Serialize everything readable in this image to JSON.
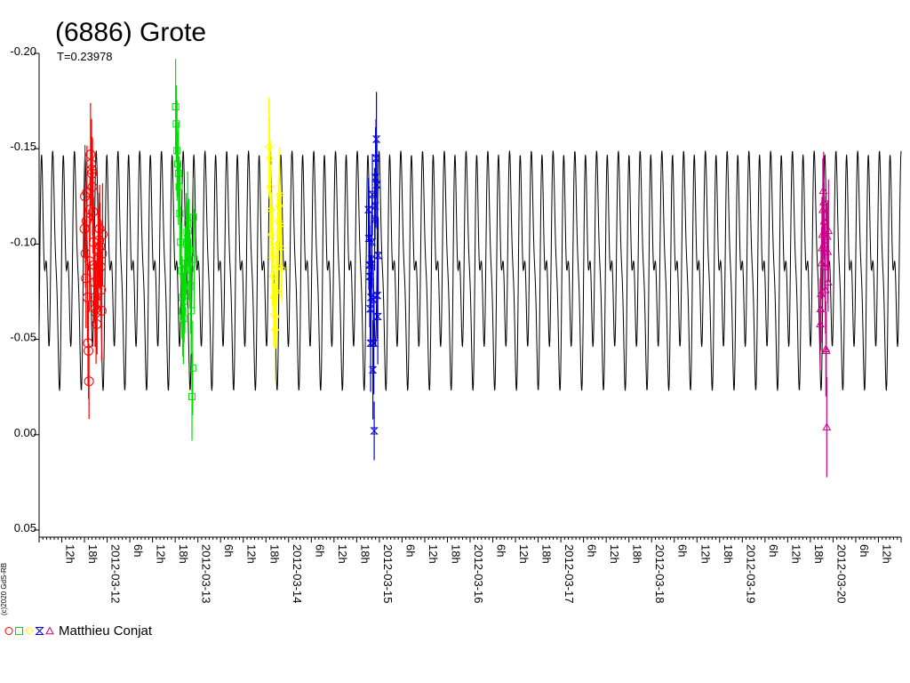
{
  "chart_data": {
    "type": "scatter",
    "title": "(6886) Grote",
    "subtitle": "T=0.23978",
    "copyright": "(c)2020 GdS-RB",
    "ylim": [
      0.05,
      -0.2
    ],
    "y_inverted": true,
    "yticks": [
      {
        "value": -0.2,
        "label": "-0.20"
      },
      {
        "value": -0.15,
        "label": "-0.15"
      },
      {
        "value": -0.1,
        "label": "-0.10"
      },
      {
        "value": -0.05,
        "label": "-0.05"
      },
      {
        "value": 0.0,
        "label": "0.00"
      },
      {
        "value": 0.05,
        "label": "0.05"
      }
    ],
    "x_unit": "hours",
    "xlim": [
      0,
      228
    ],
    "x_labels": [
      {
        "t": 6,
        "label": "12h"
      },
      {
        "t": 12,
        "label": "18h"
      },
      {
        "t": 18,
        "label": "2012-03-12"
      },
      {
        "t": 24,
        "label": "6h"
      },
      {
        "t": 30,
        "label": "12h"
      },
      {
        "t": 36,
        "label": "18h"
      },
      {
        "t": 42,
        "label": "2012-03-13"
      },
      {
        "t": 48,
        "label": "6h"
      },
      {
        "t": 54,
        "label": "12h"
      },
      {
        "t": 60,
        "label": "18h"
      },
      {
        "t": 66,
        "label": "2012-03-14"
      },
      {
        "t": 72,
        "label": "6h"
      },
      {
        "t": 78,
        "label": "12h"
      },
      {
        "t": 84,
        "label": "18h"
      },
      {
        "t": 90,
        "label": "2012-03-15"
      },
      {
        "t": 96,
        "label": "6h"
      },
      {
        "t": 102,
        "label": "12h"
      },
      {
        "t": 108,
        "label": "18h"
      },
      {
        "t": 114,
        "label": "2012-03-16"
      },
      {
        "t": 120,
        "label": "6h"
      },
      {
        "t": 126,
        "label": "12h"
      },
      {
        "t": 132,
        "label": "18h"
      },
      {
        "t": 138,
        "label": "2012-03-17"
      },
      {
        "t": 144,
        "label": "6h"
      },
      {
        "t": 150,
        "label": "12h"
      },
      {
        "t": 156,
        "label": "18h"
      },
      {
        "t": 162,
        "label": "2012-03-18"
      },
      {
        "t": 168,
        "label": "6h"
      },
      {
        "t": 174,
        "label": "12h"
      },
      {
        "t": 180,
        "label": "18h"
      },
      {
        "t": 186,
        "label": "2012-03-19"
      },
      {
        "t": 192,
        "label": "6h"
      },
      {
        "t": 198,
        "label": "12h"
      },
      {
        "t": 204,
        "label": "18h"
      },
      {
        "t": 210,
        "label": "2012-03-20"
      },
      {
        "t": 216,
        "label": "6h"
      },
      {
        "t": 222,
        "label": "12h"
      }
    ],
    "grid": false,
    "legend": {
      "placement": "bottom-left",
      "text": "Matthieu Conjat"
    },
    "model_curve": {
      "color": "#000000",
      "period_hours": 5.75472,
      "mean": -0.09,
      "harmonics": [
        {
          "n": 1,
          "amp": 0.008,
          "phase": 0.3
        },
        {
          "n": 2,
          "amp": 0.045,
          "phase": 1.2
        },
        {
          "n": 3,
          "amp": 0.008,
          "phase": 2.1
        },
        {
          "n": 4,
          "amp": 0.02,
          "phase": 0.7
        }
      ]
    },
    "series": [
      {
        "marker": "circle",
        "color": "#ff0000",
        "t_start": 12.0,
        "t_end": 16.8,
        "values": [
          -0.108,
          -0.125,
          -0.095,
          -0.082,
          -0.112,
          -0.127,
          -0.072,
          -0.048,
          -0.044,
          -0.028,
          -0.091,
          -0.118,
          -0.147,
          -0.142,
          -0.139,
          -0.137,
          -0.13,
          -0.117,
          -0.101,
          -0.089,
          -0.08,
          -0.072,
          -0.066,
          -0.064,
          -0.058,
          -0.069,
          -0.081,
          -0.092,
          -0.097,
          -0.102,
          -0.108,
          -0.099,
          -0.088,
          -0.076,
          -0.065,
          -0.095,
          -0.105
        ]
      },
      {
        "marker": "square",
        "color": "#00dd00",
        "t_start": 36.1,
        "t_end": 41.0,
        "values": [
          -0.172,
          -0.163,
          -0.149,
          -0.142,
          -0.137,
          -0.13,
          -0.116,
          -0.101,
          -0.086,
          -0.072,
          -0.065,
          -0.061,
          -0.07,
          -0.079,
          -0.09,
          -0.1,
          -0.106,
          -0.111,
          -0.107,
          -0.097,
          -0.087,
          -0.078,
          -0.065,
          -0.02,
          -0.035,
          -0.114,
          -0.092
        ]
      },
      {
        "marker": "diamond",
        "color": "#ffff00",
        "t_start": 60.8,
        "t_end": 64.2,
        "values": [
          -0.151,
          -0.145,
          -0.13,
          -0.118,
          -0.105,
          -0.093,
          -0.083,
          -0.072,
          -0.063,
          -0.055,
          -0.062,
          -0.075,
          -0.088,
          -0.1,
          -0.112,
          -0.12,
          -0.126,
          -0.11,
          -0.098,
          -0.087
        ]
      },
      {
        "marker": "hourglass",
        "color": "#0000dd",
        "t_start": 87.1,
        "t_end": 89.7,
        "values": [
          -0.118,
          -0.103,
          -0.089,
          -0.083,
          -0.066,
          -0.048,
          -0.072,
          -0.092,
          -0.101,
          -0.126,
          -0.034,
          -0.071,
          -0.048,
          -0.002,
          -0.113,
          -0.12,
          -0.135,
          -0.145,
          -0.155,
          -0.131,
          -0.073,
          -0.062,
          -0.094
        ]
      },
      {
        "marker": "triangle",
        "color": "#cc0088",
        "t_start": 206.6,
        "t_end": 208.8,
        "values": [
          -0.058,
          -0.066,
          -0.074,
          -0.09,
          -0.098,
          -0.105,
          -0.118,
          -0.128,
          -0.122,
          -0.112,
          -0.1,
          -0.088,
          -0.076,
          -0.045,
          -0.044,
          -0.004,
          -0.104,
          -0.096,
          -0.08,
          -0.107
        ]
      }
    ]
  }
}
